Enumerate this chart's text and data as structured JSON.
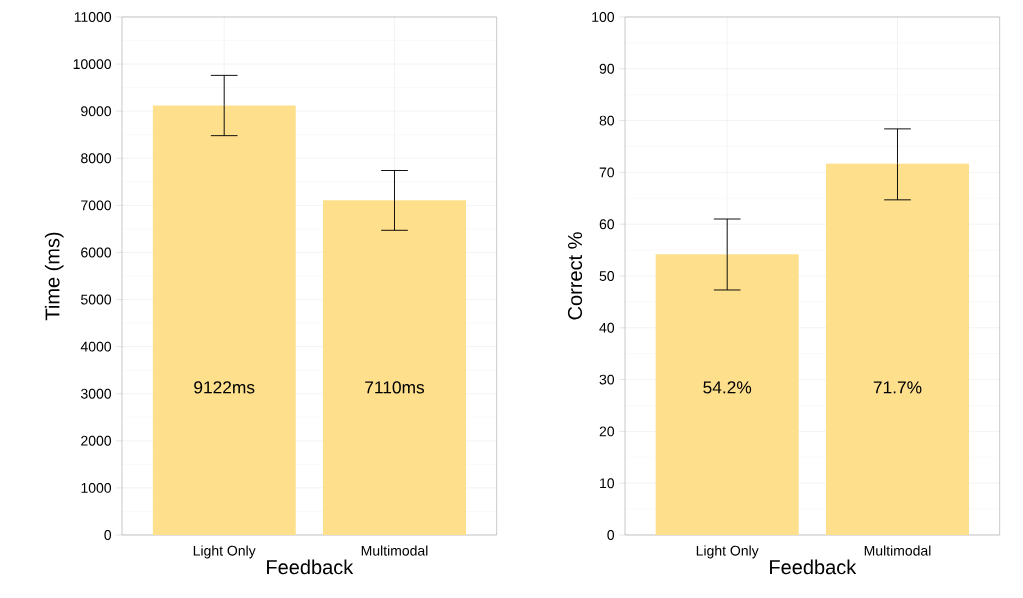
{
  "chart_data": [
    {
      "type": "bar",
      "xlabel": "Feedback",
      "ylabel": "Time (ms)",
      "categories": [
        "Light Only",
        "Multimodal"
      ],
      "values": [
        9122,
        7110
      ],
      "color": "#fddf8c",
      "errors": [
        [
          8480,
          9760
        ],
        [
          6470,
          7740
        ]
      ],
      "value_labels": [
        "9122ms",
        "7110ms"
      ],
      "ylim": [
        0,
        11000
      ],
      "yticks": [
        0,
        1000,
        2000,
        3000,
        4000,
        5000,
        6000,
        7000,
        8000,
        9000,
        10000,
        11000
      ],
      "grid": true
    },
    {
      "type": "bar",
      "xlabel": "Feedback",
      "ylabel": "Correct %",
      "categories": [
        "Light Only",
        "Multimodal"
      ],
      "values": [
        54.2,
        71.7
      ],
      "color": "#fddf8c",
      "errors": [
        [
          47.3,
          61.0
        ],
        [
          64.7,
          78.4
        ]
      ],
      "value_labels": [
        "54.2%",
        "71.7%"
      ],
      "ylim": [
        0,
        100
      ],
      "yticks": [
        0,
        10,
        20,
        30,
        40,
        50,
        60,
        70,
        80,
        90,
        100
      ],
      "grid": true
    }
  ]
}
